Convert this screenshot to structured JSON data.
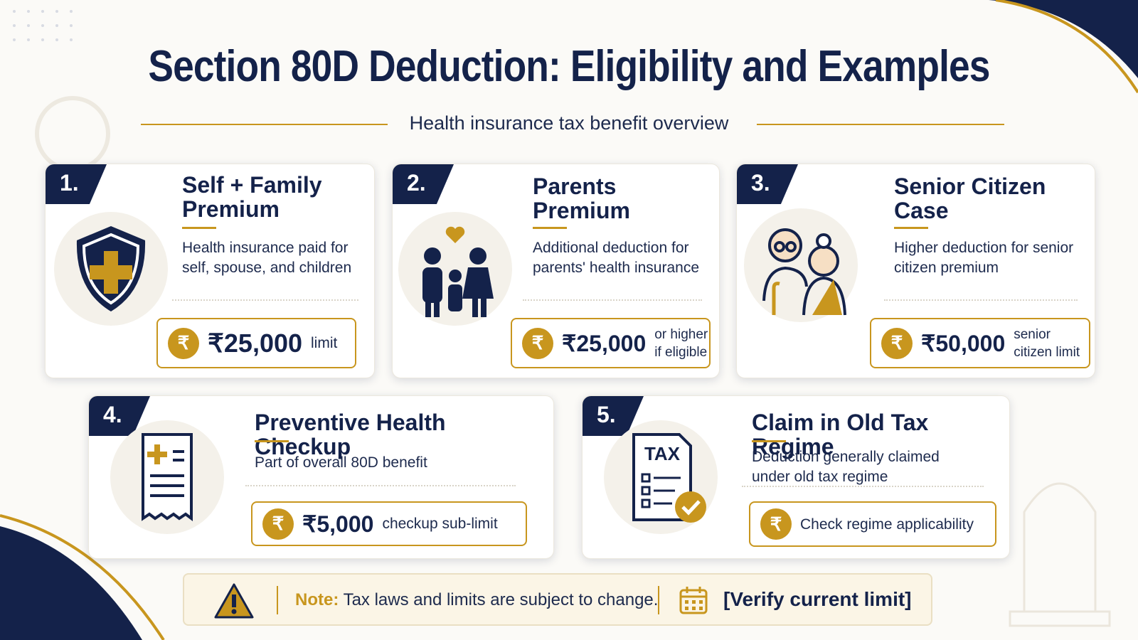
{
  "header": {
    "title": "Section 80D Deduction: Eligibility and Examples",
    "subtitle": "Health insurance tax benefit overview"
  },
  "coin_symbol": "₹",
  "cards": [
    {
      "number": "1.",
      "title": "Self + Family Premium",
      "description": "Health insurance paid for self, spouse, and children",
      "amount": "₹25,000",
      "amount_note": "limit"
    },
    {
      "number": "2.",
      "title": "Parents Premium",
      "description": "Additional deduction for parents' health insurance",
      "amount": "₹25,000",
      "amount_note": "or higher if eligible"
    },
    {
      "number": "3.",
      "title": "Senior Citizen Case",
      "description": "Higher deduction for senior citizen premium",
      "amount": "₹50,000",
      "amount_note": "senior citizen limit"
    },
    {
      "number": "4.",
      "title": "Preventive Health Checkup",
      "description": "Part of overall 80D benefit",
      "amount": "₹5,000",
      "amount_note": "checkup sub-limit"
    },
    {
      "number": "5.",
      "title": "Claim in Old Tax Regime",
      "description": "Deduction generally claimed under old tax regime",
      "icon_label": "TAX",
      "amount_note": "Check regime applicability"
    }
  ],
  "note": {
    "label": "Note:",
    "text": "Tax laws and limits are subject to change.",
    "action": "[Verify current limit]"
  }
}
